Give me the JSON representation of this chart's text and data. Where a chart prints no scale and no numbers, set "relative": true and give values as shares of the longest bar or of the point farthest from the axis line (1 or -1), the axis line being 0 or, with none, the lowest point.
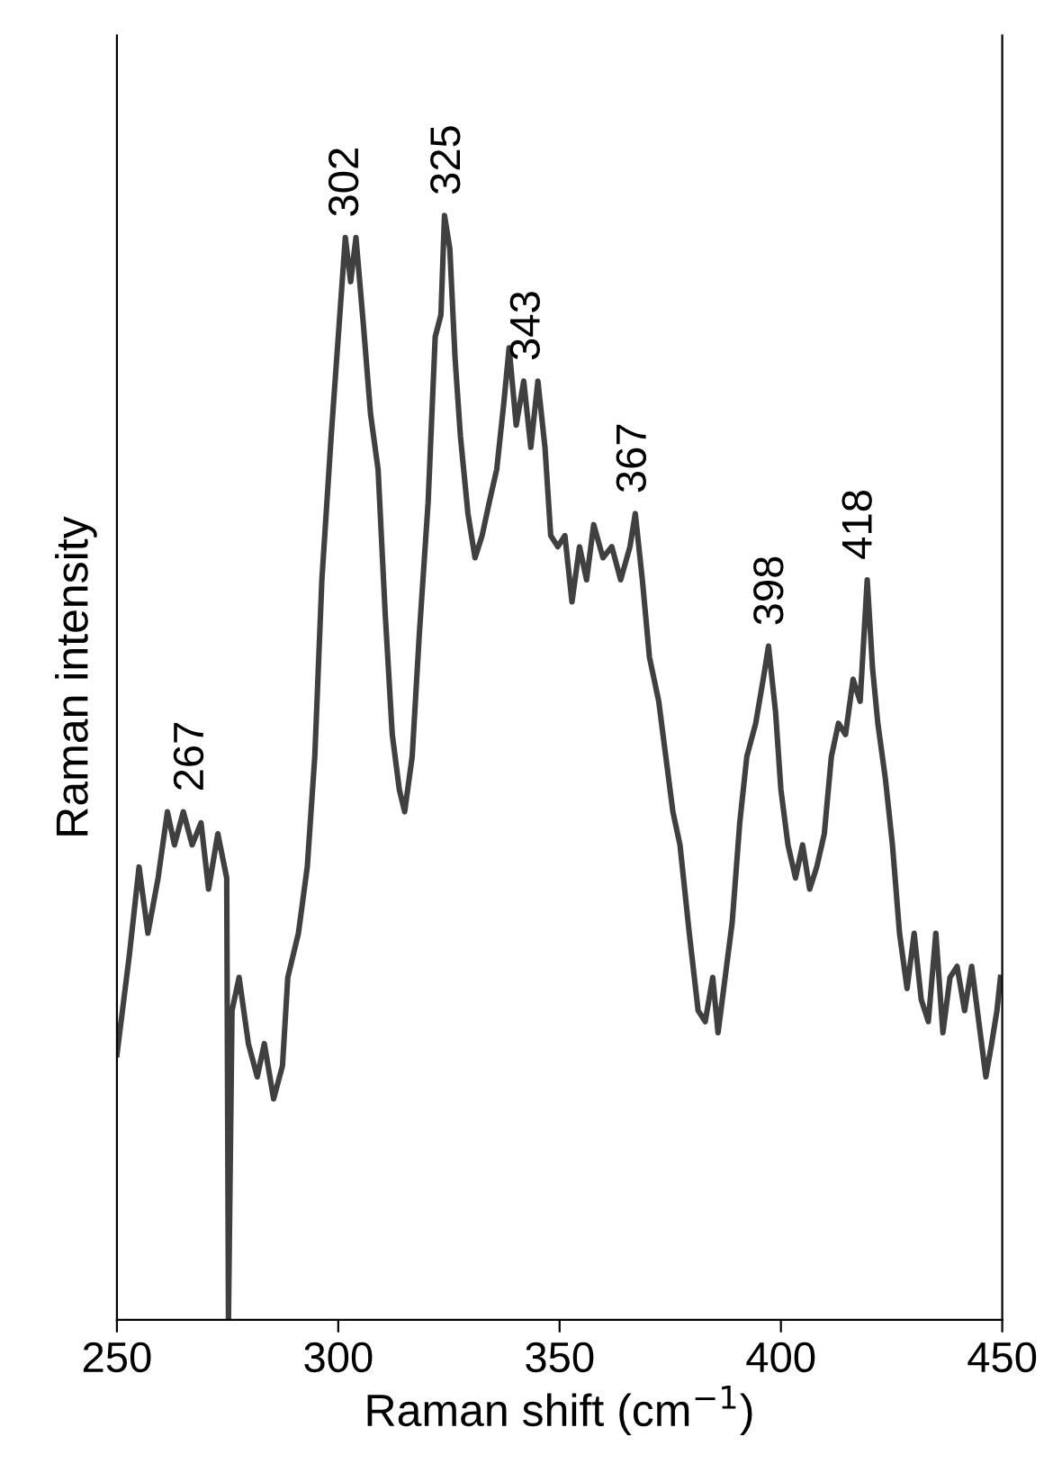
{
  "chart_data": {
    "type": "line",
    "relative": true,
    "xlabel": "Raman shift (cm$^{−1}$)",
    "ylabel": "Raman intensity",
    "xlim": [
      250,
      450
    ],
    "xticks": [
      250,
      300,
      350,
      400,
      450
    ],
    "grid": false,
    "legend": false,
    "marker": "none",
    "line_style": "solid",
    "tick_labels": "x",
    "series": [
      {
        "color": "#404040",
        "x": [
          250,
          252.8,
          255,
          257,
          259.3,
          261.4,
          263,
          265,
          267,
          269,
          270.7,
          272.8,
          274.8,
          275.2,
          276,
          277.6,
          279.7,
          281.7,
          283.3,
          285.4,
          287.4,
          288.6,
          291,
          293,
          294.7,
          296.3,
          298.4,
          300,
          301.6,
          302.8,
          304,
          305.7,
          307.3,
          309,
          310.6,
          312.2,
          313.8,
          315,
          316.7,
          318.3,
          320.3,
          321.9,
          323.2,
          324,
          325.2,
          326.4,
          327.6,
          329.3,
          330.9,
          332.5,
          334.1,
          335.8,
          337.4,
          338.6,
          340.2,
          341.9,
          343.5,
          345.1,
          346.7,
          348,
          349.6,
          351.2,
          352.8,
          354.5,
          356.1,
          357.7,
          359.8,
          361.8,
          363.8,
          365.9,
          367.1,
          368.7,
          370.3,
          372.4,
          374,
          375.6,
          377.2,
          379.3,
          381.3,
          382.9,
          384.6,
          385.8,
          387.4,
          389,
          390.7,
          392.3,
          394.3,
          396,
          397.2,
          398.8,
          400,
          401.6,
          403.3,
          404.9,
          406.5,
          408.1,
          409.8,
          411.4,
          413,
          414.6,
          416.3,
          417.9,
          419.5,
          420.7,
          421.9,
          423.6,
          425.2,
          426.8,
          428.5,
          430.1,
          431.7,
          433.3,
          435,
          436.6,
          438.2,
          439.8,
          441.5,
          443.1,
          444.7,
          446.3,
          447.6,
          448.8,
          449.6
        ],
        "values": [
          0.24,
          0.33,
          0.41,
          0.35,
          0.4,
          0.46,
          0.43,
          0.46,
          0.43,
          0.45,
          0.39,
          0.44,
          0.4,
          0.0,
          0.28,
          0.31,
          0.25,
          0.22,
          0.25,
          0.2,
          0.23,
          0.31,
          0.35,
          0.41,
          0.51,
          0.67,
          0.8,
          0.89,
          0.98,
          0.94,
          0.98,
          0.9,
          0.82,
          0.77,
          0.64,
          0.53,
          0.48,
          0.46,
          0.51,
          0.62,
          0.74,
          0.89,
          0.91,
          1.0,
          0.97,
          0.87,
          0.8,
          0.73,
          0.69,
          0.71,
          0.74,
          0.77,
          0.83,
          0.88,
          0.81,
          0.85,
          0.79,
          0.85,
          0.79,
          0.71,
          0.7,
          0.71,
          0.65,
          0.7,
          0.67,
          0.72,
          0.69,
          0.7,
          0.67,
          0.7,
          0.73,
          0.67,
          0.6,
          0.56,
          0.51,
          0.46,
          0.43,
          0.35,
          0.28,
          0.27,
          0.31,
          0.26,
          0.31,
          0.36,
          0.45,
          0.51,
          0.54,
          0.58,
          0.61,
          0.55,
          0.48,
          0.43,
          0.4,
          0.43,
          0.39,
          0.41,
          0.44,
          0.51,
          0.54,
          0.53,
          0.58,
          0.56,
          0.67,
          0.59,
          0.54,
          0.49,
          0.43,
          0.35,
          0.3,
          0.35,
          0.29,
          0.27,
          0.35,
          0.26,
          0.31,
          0.32,
          0.28,
          0.32,
          0.27,
          0.22,
          0.25,
          0.28,
          0.31
        ]
      }
    ],
    "annotations": [
      {
        "text": "267",
        "x": 267,
        "y": 0.46
      },
      {
        "text": "302",
        "x": 302,
        "y": 0.98
      },
      {
        "text": "325",
        "x": 325,
        "y": 1.0
      },
      {
        "text": "343",
        "x": 343,
        "y": 0.85
      },
      {
        "text": "367",
        "x": 367,
        "y": 0.73
      },
      {
        "text": "398",
        "x": 398,
        "y": 0.61
      },
      {
        "text": "418",
        "x": 418,
        "y": 0.67
      }
    ]
  }
}
